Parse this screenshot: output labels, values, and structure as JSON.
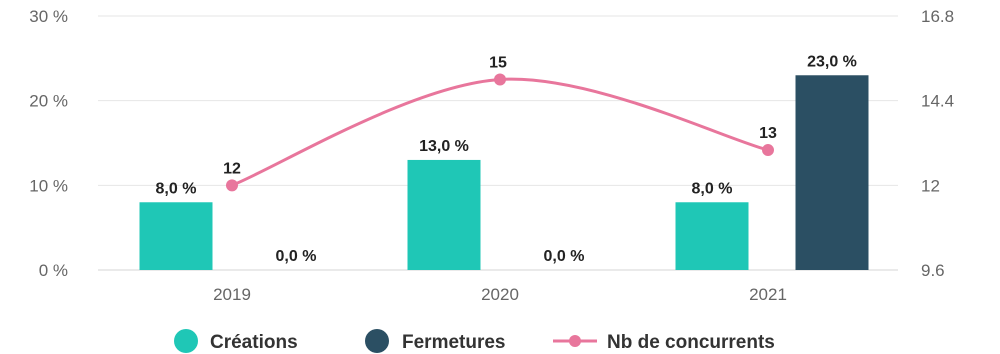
{
  "chart_data": {
    "type": "bar",
    "categories": [
      "2019",
      "2020",
      "2021"
    ],
    "series": [
      {
        "name": "Créations",
        "kind": "bar",
        "axis": "left",
        "color": "#1fc7b6",
        "values": [
          8.0,
          13.0,
          8.0
        ],
        "labels": [
          "8,0 %",
          "13,0 %",
          "8,0 %"
        ]
      },
      {
        "name": "Fermetures",
        "kind": "bar",
        "axis": "left",
        "color": "#2b4f63",
        "values": [
          0.0,
          0.0,
          23.0
        ],
        "labels": [
          "0,0 %",
          "0,0 %",
          "23,0 %"
        ]
      },
      {
        "name": "Nb de concurrents",
        "kind": "line",
        "axis": "right",
        "color": "#e8769c",
        "values": [
          12,
          15,
          13
        ],
        "labels": [
          "12",
          "15",
          "13"
        ]
      }
    ],
    "yleft": {
      "min": 0,
      "max": 30,
      "ticks": [
        0,
        10,
        20,
        30
      ],
      "tick_labels": [
        "0 %",
        "10 %",
        "20 %",
        "30 %"
      ]
    },
    "yright": {
      "min": 9.6,
      "max": 16.8,
      "ticks": [
        9.6,
        12,
        14.4,
        16.8
      ],
      "tick_labels": [
        "9.6",
        "12",
        "14.4",
        "16.8"
      ]
    },
    "grid": true,
    "legend_position": "bottom",
    "legend": [
      "Créations",
      "Fermetures",
      "Nb de concurrents"
    ]
  }
}
